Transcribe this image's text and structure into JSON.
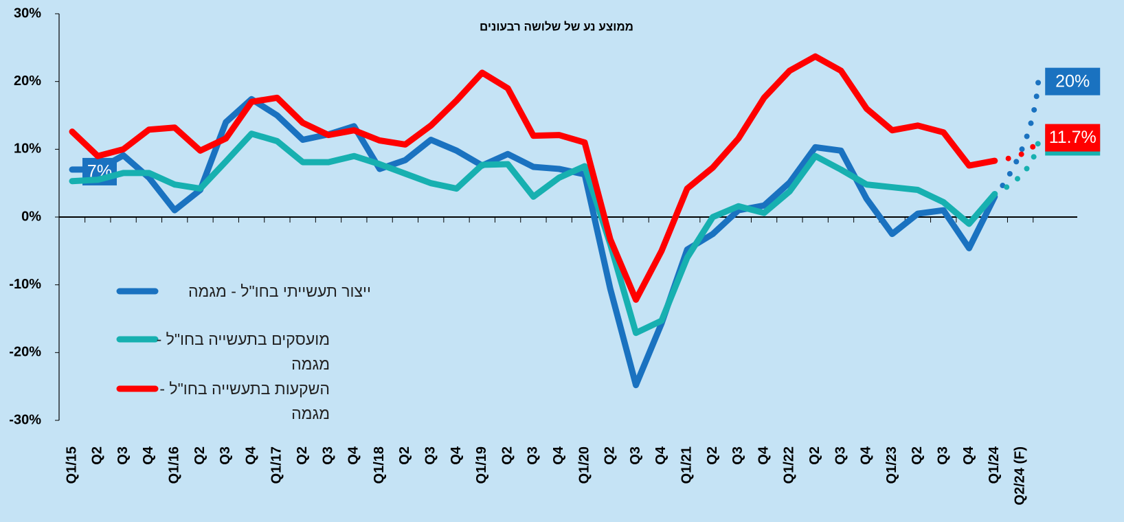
{
  "chart_data": {
    "type": "line",
    "subtitle": "ממוצע נע של שלושה רבעונים",
    "categories": [
      "Q1/15",
      "Q2",
      "Q3",
      "Q4",
      "Q1/16",
      "Q2",
      "Q3",
      "Q4",
      "Q1/17",
      "Q2",
      "Q3",
      "Q4",
      "Q1/18",
      "Q2",
      "Q3",
      "Q4",
      "Q1/19",
      "Q2",
      "Q3",
      "Q4",
      "Q1/20",
      "Q2",
      "Q3",
      "Q4",
      "Q1/21",
      "Q2",
      "Q3",
      "Q4",
      "Q1/22",
      "Q2",
      "Q3",
      "Q4",
      "Q1/23",
      "Q2",
      "Q3",
      "Q4",
      "Q1/24",
      "Q2/24 (F)"
    ],
    "series": [
      {
        "name": "ייצור תעשייתי בחו\"ל - מגמה",
        "color": "#1a72c0",
        "values": [
          7,
          7,
          9.1,
          5.8,
          1.0,
          4.0,
          14.0,
          17.4,
          15.0,
          11.4,
          12.2,
          13.4,
          7.1,
          8.4,
          11.4,
          9.8,
          7.6,
          9.3,
          7.4,
          7.1,
          6.3,
          -10.6,
          -24.8,
          -15.7,
          -4.8,
          -2.5,
          1.0,
          1.7,
          5.1,
          10.3,
          9.8,
          2.7,
          -2.5,
          0.5,
          1.0,
          -4.6,
          3.0,
          20
        ],
        "value_labels": [
          "7%",
          null,
          null,
          null,
          null,
          null,
          null,
          null,
          null,
          null,
          null,
          null,
          null,
          null,
          null,
          null,
          null,
          null,
          null,
          null,
          null,
          null,
          null,
          null,
          null,
          null,
          null,
          null,
          null,
          null,
          null,
          null,
          null,
          null,
          null,
          null,
          null,
          "20%"
        ]
      },
      {
        "name": "מועסקים בתעשייה בחו\"ל - מגמה",
        "color": "#17b0b0",
        "values": [
          5.3,
          5.5,
          6.5,
          6.5,
          4.8,
          4.2,
          8.2,
          12.3,
          11.2,
          8.1,
          8.1,
          9.0,
          7.8,
          6.4,
          5.0,
          4.2,
          7.7,
          7.8,
          3.0,
          5.8,
          7.5,
          -4.0,
          -17.1,
          -15.3,
          -6.0,
          0,
          1.6,
          0.6,
          3.8,
          9.0,
          7.0,
          4.8,
          4.4,
          4.0,
          2.2,
          -1.0,
          3.4,
          11.1
        ],
        "value_labels": [
          null,
          null,
          null,
          null,
          null,
          null,
          null,
          null,
          null,
          null,
          null,
          null,
          null,
          null,
          null,
          null,
          null,
          null,
          null,
          null,
          null,
          null,
          null,
          null,
          null,
          null,
          null,
          null,
          null,
          null,
          null,
          null,
          null,
          null,
          null,
          null,
          null,
          "11.1%"
        ]
      },
      {
        "name": "השקעות בתעשייה בחו\"ל - מגמה",
        "color": "#ff0000",
        "values": [
          12.6,
          9.0,
          10.0,
          12.9,
          13.2,
          9.8,
          11.6,
          17.0,
          17.6,
          13.9,
          12.1,
          12.8,
          11.3,
          10.7,
          13.5,
          17.2,
          21.3,
          19.0,
          12.0,
          12.1,
          11.0,
          -3.3,
          -12.2,
          -5.0,
          4.2,
          7.3,
          11.6,
          17.6,
          21.6,
          23.7,
          21.6,
          16.0,
          12.8,
          13.5,
          12.5,
          7.6,
          8.3,
          11.7
        ],
        "value_labels": [
          null,
          null,
          null,
          null,
          null,
          null,
          null,
          null,
          null,
          null,
          null,
          null,
          null,
          null,
          null,
          null,
          null,
          null,
          null,
          null,
          null,
          null,
          null,
          null,
          null,
          null,
          null,
          null,
          null,
          null,
          null,
          null,
          null,
          null,
          null,
          null,
          null,
          "11.7%"
        ]
      }
    ],
    "ylim": [
      -30,
      30
    ],
    "yticks": [
      {
        "value": -30,
        "label": "-30%"
      },
      {
        "value": -20,
        "label": "-20%"
      },
      {
        "value": -10,
        "label": "-10%"
      },
      {
        "value": 0,
        "label": "0%"
      },
      {
        "value": 10,
        "label": "10%"
      },
      {
        "value": 20,
        "label": "20%"
      },
      {
        "value": 30,
        "label": "30%"
      }
    ],
    "dashed_last_segment": true,
    "legend": "left"
  }
}
